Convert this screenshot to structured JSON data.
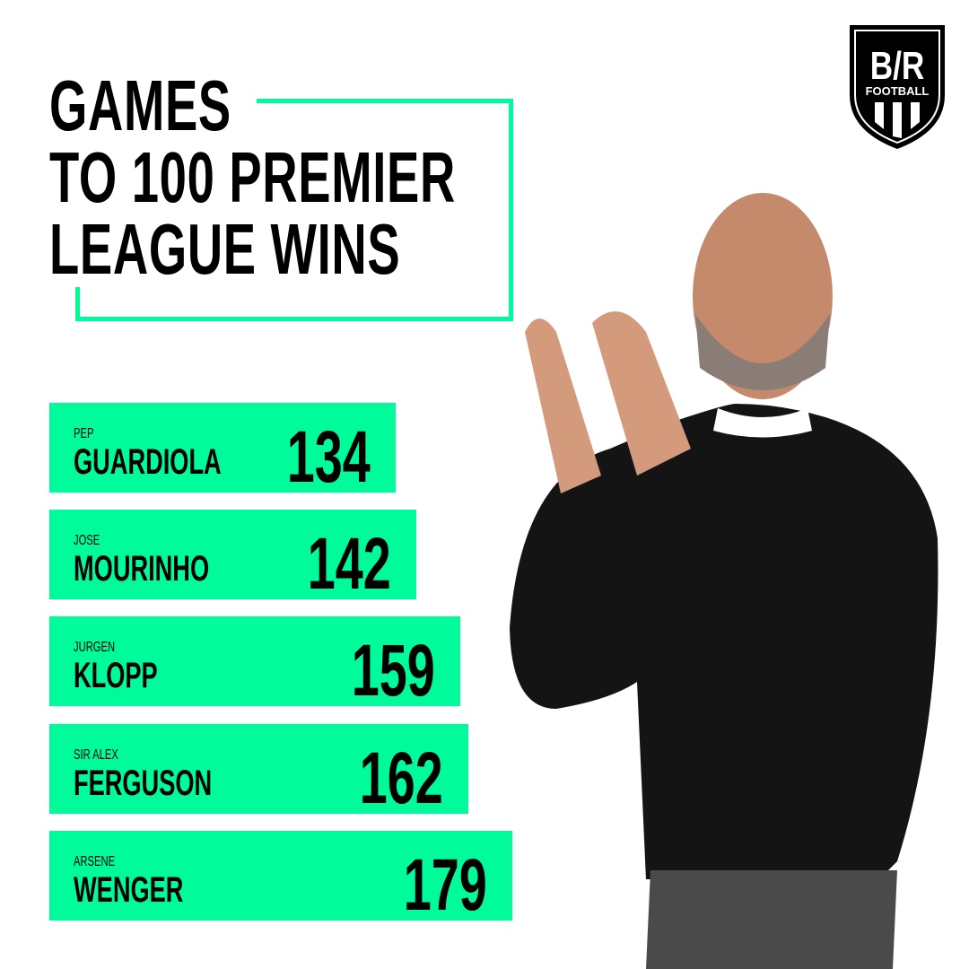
{
  "brand": {
    "logo_text": "B/R",
    "logo_sub": "FOOTBALL"
  },
  "title_lines": [
    "GAMES",
    "TO 100 PREMIER",
    "LEAGUE WINS"
  ],
  "colors": {
    "accent": "#00fb9a",
    "text": "#000000"
  },
  "chart_data": {
    "type": "bar",
    "title": "GAMES TO 100 PREMIER LEAGUE WINS",
    "orientation": "horizontal",
    "categories": [
      "PEP GUARDIOLA",
      "JOSE MOURINHO",
      "JURGEN KLOPP",
      "SIR ALEX FERGUSON",
      "ARSENE WENGER"
    ],
    "values": [
      134,
      142,
      159,
      162,
      179
    ],
    "xlabel": "",
    "ylabel": "",
    "bars": [
      {
        "first": "PEP",
        "last": "GUARDIOLA",
        "value": 134
      },
      {
        "first": "JOSE",
        "last": "MOURINHO",
        "value": 142
      },
      {
        "first": "JURGEN",
        "last": "KLOPP",
        "value": 159
      },
      {
        "first": "SIR ALEX",
        "last": "FERGUSON",
        "value": 162
      },
      {
        "first": "ARSENE",
        "last": "WENGER",
        "value": 179
      }
    ]
  }
}
